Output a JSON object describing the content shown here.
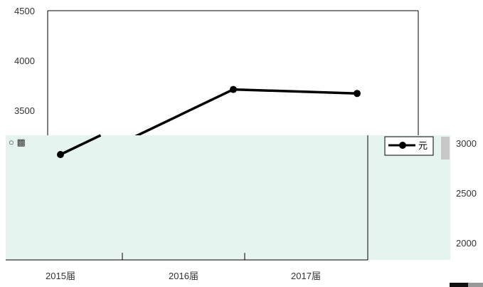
{
  "chart_data": {
    "type": "line",
    "categories": [
      "2015届",
      "2016届",
      "2017届"
    ],
    "series": [
      {
        "name": "元",
        "values": [
          2880,
          3710,
          3670
        ]
      }
    ],
    "y_ticks_upper": [
      4500,
      4000,
      3500
    ],
    "y_ticks_lower": [
      3000,
      2500,
      2000
    ],
    "ylim": [
      1750,
      4500
    ],
    "legend_position": "right",
    "grid": false,
    "corrupted_glyphs": "○ ▩"
  },
  "colors": {
    "line": "#000000",
    "overlay_fill": "#e6f4ef",
    "axis": "#000000",
    "corrupt_bar": "#c8c8c8"
  }
}
